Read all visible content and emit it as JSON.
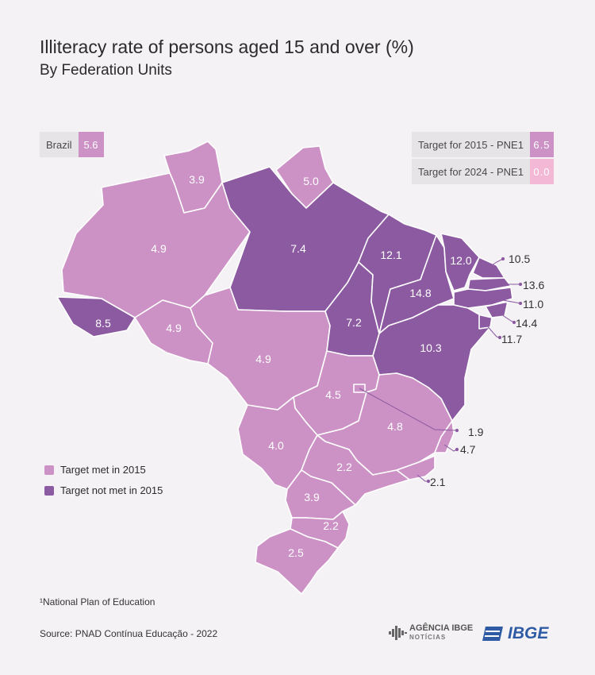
{
  "header": {
    "title": "Illiteracy rate of persons aged 15 and over (%)",
    "subtitle": "By Federation Units"
  },
  "brazil": {
    "label": "Brazil",
    "value": "5.6"
  },
  "targets": {
    "t2015": {
      "label": "Target for 2015 - PNE1",
      "value": "6.5"
    },
    "t2024": {
      "label": "Target  for 2024 - PNE1",
      "value": "0.0"
    }
  },
  "legend": {
    "met": "Target met in 2015",
    "not_met": "Target not met in 2015"
  },
  "colors": {
    "met": "#cc92c5",
    "not_met": "#8c5aa1",
    "target_2024": "#f2b8d5",
    "background": "#f4f2f4"
  },
  "regions": [
    {
      "id": "RR",
      "value": "3.9",
      "status": "met"
    },
    {
      "id": "AP",
      "value": "5.0",
      "status": "met"
    },
    {
      "id": "AM",
      "value": "4.9",
      "status": "met"
    },
    {
      "id": "PA",
      "value": "7.4",
      "status": "not_met"
    },
    {
      "id": "AC",
      "value": "8.5",
      "status": "not_met"
    },
    {
      "id": "RO",
      "value": "4.9",
      "status": "met"
    },
    {
      "id": "MT",
      "value": "4.9",
      "status": "met"
    },
    {
      "id": "TO",
      "value": "7.2",
      "status": "not_met"
    },
    {
      "id": "MA",
      "value": "12.1",
      "status": "not_met"
    },
    {
      "id": "PI",
      "value": "14.8",
      "status": "not_met"
    },
    {
      "id": "CE",
      "value": "12.0",
      "status": "not_met"
    },
    {
      "id": "RN",
      "value": "10.5",
      "status": "not_met"
    },
    {
      "id": "PB",
      "value": "13.6",
      "status": "not_met"
    },
    {
      "id": "PE",
      "value": "11.0",
      "status": "not_met"
    },
    {
      "id": "AL",
      "value": "14.4",
      "status": "not_met"
    },
    {
      "id": "SE",
      "value": "11.7",
      "status": "not_met"
    },
    {
      "id": "BA",
      "value": "10.3",
      "status": "not_met"
    },
    {
      "id": "GO",
      "value": "4.5",
      "status": "met"
    },
    {
      "id": "DF",
      "value": "1.9",
      "status": "met"
    },
    {
      "id": "MG",
      "value": "4.8",
      "status": "met"
    },
    {
      "id": "ES",
      "value": "4.7",
      "status": "met"
    },
    {
      "id": "RJ",
      "value": "2.1",
      "status": "met"
    },
    {
      "id": "MS",
      "value": "4.0",
      "status": "met"
    },
    {
      "id": "SP",
      "value": "2.2",
      "status": "met"
    },
    {
      "id": "PR",
      "value": "3.9",
      "status": "met"
    },
    {
      "id": "SC",
      "value": "2.2",
      "status": "met"
    },
    {
      "id": "RS",
      "value": "2.5",
      "status": "met"
    }
  ],
  "footnote": "¹National Plan of Education",
  "source": "Source: PNAD Contínua Educação - 2022",
  "logos": {
    "agencia_main": "AGÊNCIA IBGE",
    "agencia_sub": "NOTÍCIAS",
    "ibge": "IBGE"
  }
}
